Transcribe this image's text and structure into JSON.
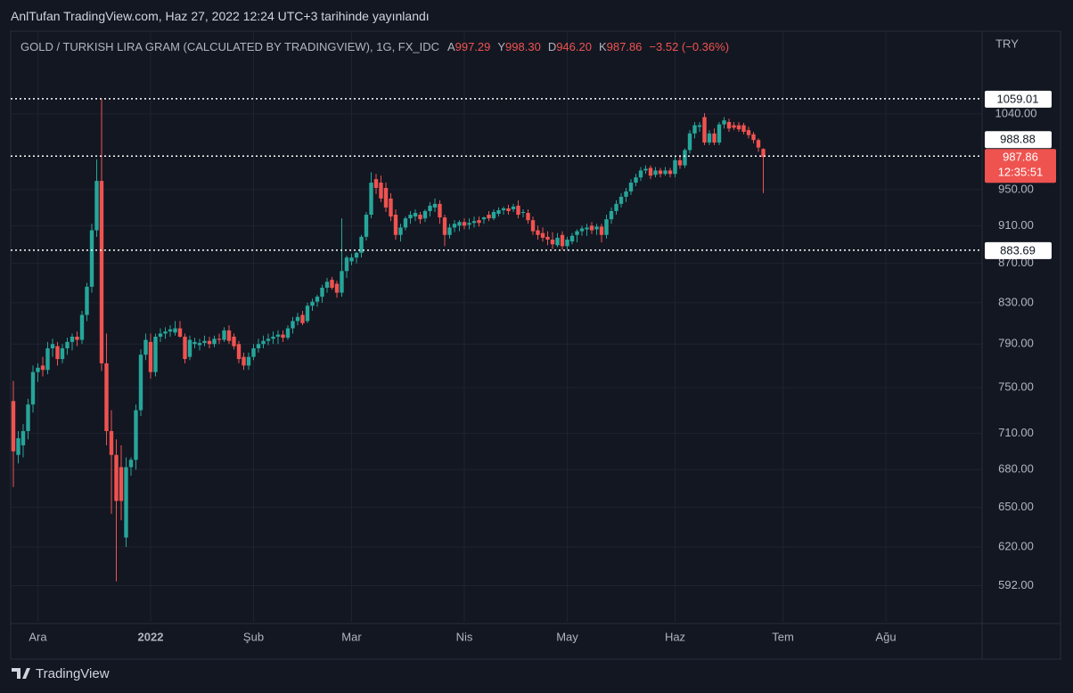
{
  "header": {
    "title": "AnlTufan TradingView.com, Haz 27, 2022 12:24 UTC+3 tarihinde yayınlandı"
  },
  "footer": {
    "logo": "TradingView"
  },
  "chart_data": {
    "type": "candlestick",
    "title": "GOLD / TURKISH LIRA GRAM (CALCULATED BY TRADINGVIEW), 1G, FX_IDC",
    "legend": [
      {
        "key": "A",
        "value": "997.29"
      },
      {
        "key": "Y",
        "value": "998.30"
      },
      {
        "key": "D",
        "value": "946.20"
      },
      {
        "key": "K",
        "value": "987.86"
      }
    ],
    "change": "−3.52 (−0.36%)",
    "currency": "TRY",
    "countdown": "12:35:51",
    "up_color": "#26a69a",
    "down_color": "#ef5350",
    "log_scale": true,
    "grid": true,
    "ylim": [
      567,
      1148
    ],
    "yticks": [
      {
        "value": 592,
        "label": "592.00"
      },
      {
        "value": 620,
        "label": "620.00"
      },
      {
        "value": 650,
        "label": "650.00"
      },
      {
        "value": 680,
        "label": "680.00"
      },
      {
        "value": 710,
        "label": "710.00"
      },
      {
        "value": 750,
        "label": "750.00"
      },
      {
        "value": 790,
        "label": "790.00"
      },
      {
        "value": 830,
        "label": "830.00"
      },
      {
        "value": 870,
        "label": "870.00"
      },
      {
        "value": 910,
        "label": "910.00"
      },
      {
        "value": 950,
        "label": "950.00"
      },
      {
        "value": 1040,
        "label": "1040.00"
      }
    ],
    "hlines": [
      1059.01,
      988.88,
      883.69
    ],
    "categories": [
      null,
      null,
      null,
      null,
      null,
      "Ara",
      null,
      null,
      null,
      null,
      null,
      null,
      null,
      null,
      null,
      null,
      null,
      null,
      null,
      null,
      null,
      null,
      null,
      null,
      null,
      null,
      null,
      null,
      "2022",
      null,
      null,
      null,
      null,
      null,
      null,
      null,
      null,
      null,
      null,
      null,
      null,
      null,
      null,
      null,
      null,
      null,
      null,
      null,
      null,
      "Şub",
      null,
      null,
      null,
      null,
      null,
      null,
      null,
      null,
      null,
      null,
      null,
      null,
      null,
      null,
      null,
      null,
      null,
      null,
      null,
      "Mar",
      null,
      null,
      null,
      null,
      null,
      null,
      null,
      null,
      null,
      null,
      null,
      null,
      null,
      null,
      null,
      null,
      null,
      null,
      null,
      null,
      null,
      null,
      "Nis",
      null,
      null,
      null,
      null,
      null,
      null,
      null,
      null,
      null,
      null,
      null,
      null,
      null,
      null,
      null,
      null,
      null,
      null,
      null,
      null,
      "May",
      null,
      null,
      null,
      null,
      null,
      null,
      null,
      null,
      null,
      null,
      null,
      null,
      null,
      null,
      null,
      null,
      null,
      null,
      null,
      null,
      null,
      "Haz",
      null,
      null,
      null,
      null,
      null,
      null,
      null,
      null,
      null,
      null,
      null,
      null,
      null,
      null,
      null,
      null,
      null,
      null,
      null,
      null,
      null,
      "Tem",
      null,
      null,
      null,
      null,
      null,
      null,
      null,
      null,
      null,
      null,
      null,
      null,
      null,
      null,
      null,
      null,
      null,
      null,
      null,
      null,
      "Ağu"
    ],
    "open": [
      738,
      692,
      700,
      712,
      735,
      764,
      770,
      766,
      786,
      788,
      776,
      786,
      792,
      797,
      794,
      818,
      846,
      905,
      960,
      772,
      712,
      692,
      682,
      627,
      682,
      688,
      730,
      780,
      792,
      764,
      797,
      800,
      802,
      801,
      805,
      797,
      778,
      790,
      789,
      791,
      793,
      790,
      795,
      794,
      803,
      797,
      790,
      778,
      770,
      778,
      786,
      790,
      793,
      795,
      797,
      799,
      796,
      805,
      812,
      818,
      812,
      827,
      831,
      836,
      845,
      853,
      849,
      840,
      862,
      872,
      876,
      881,
      898,
      922,
      962,
      958,
      952,
      940,
      922,
      900,
      908,
      918,
      920,
      922,
      918,
      926,
      930,
      934,
      919,
      900,
      908,
      910,
      914,
      911,
      913,
      916,
      917,
      922,
      918,
      923,
      927,
      929,
      928,
      932,
      924,
      924,
      916,
      905,
      902,
      898,
      895,
      889,
      900,
      888,
      893,
      900,
      904,
      906,
      910,
      906,
      909,
      900,
      917,
      926,
      934,
      942,
      948,
      958,
      964,
      972,
      975,
      967,
      972,
      968,
      972,
      968,
      984,
      978,
      996,
      1016,
      1024,
      1036,
      1005,
      1016,
      1005,
      1027,
      1030,
      1026,
      1026,
      1026,
      1020,
      1015,
      1008,
      997.29,
      null,
      null,
      null,
      null,
      null,
      null,
      null,
      null,
      null,
      null,
      null,
      null,
      null,
      null,
      null,
      null,
      null,
      null,
      null,
      null,
      null,
      null,
      null,
      null,
      null
    ],
    "high": [
      756,
      712,
      718,
      740,
      770,
      772,
      778,
      792,
      795,
      792,
      790,
      796,
      800,
      802,
      822,
      850,
      912,
      985,
      1059.01,
      800,
      730,
      705,
      700,
      690,
      690,
      735,
      785,
      800,
      800,
      800,
      805,
      806,
      808,
      812,
      812,
      800,
      798,
      796,
      795,
      798,
      797,
      798,
      800,
      806,
      808,
      800,
      793,
      782,
      782,
      790,
      795,
      798,
      800,
      802,
      803,
      803,
      808,
      816,
      820,
      822,
      830,
      834,
      838,
      848,
      855,
      856,
      852,
      918,
      878,
      880,
      882,
      900,
      925,
      970,
      968,
      966,
      958,
      946,
      928,
      912,
      920,
      926,
      928,
      925,
      928,
      936,
      940,
      938,
      922,
      912,
      916,
      916,
      918,
      918,
      920,
      920,
      920,
      926,
      928,
      930,
      931,
      933,
      934,
      938,
      928,
      928,
      920,
      910,
      908,
      904,
      903,
      902,
      904,
      898,
      902,
      906,
      910,
      912,
      914,
      912,
      912,
      922,
      930,
      938,
      946,
      952,
      962,
      968,
      976,
      978,
      978,
      976,
      975,
      976,
      975,
      988,
      990,
      998,
      1020,
      1030,
      1030,
      1041,
      1020,
      1022,
      1030,
      1036,
      1034,
      1030,
      1030,
      1029,
      1024,
      1018,
      1010,
      998.3,
      null,
      null,
      null,
      null,
      null,
      null,
      null,
      null,
      null,
      null,
      null,
      null,
      null,
      null,
      null,
      null,
      null,
      null,
      null,
      null,
      null,
      null,
      null,
      null,
      null
    ],
    "low": [
      666,
      685,
      690,
      705,
      728,
      755,
      760,
      762,
      778,
      770,
      772,
      780,
      784,
      788,
      790,
      812,
      840,
      898,
      765,
      700,
      645,
      595,
      640,
      620,
      675,
      680,
      725,
      775,
      758,
      760,
      792,
      795,
      797,
      798,
      796,
      772,
      775,
      786,
      784,
      788,
      786,
      787,
      790,
      792,
      790,
      785,
      772,
      766,
      766,
      775,
      782,
      786,
      789,
      790,
      790,
      792,
      794,
      800,
      808,
      808,
      810,
      822,
      826,
      830,
      840,
      843,
      835,
      836,
      855,
      868,
      870,
      876,
      894,
      918,
      945,
      936,
      925,
      915,
      895,
      893,
      905,
      912,
      915,
      912,
      914,
      920,
      925,
      912,
      888,
      896,
      903,
      904,
      906,
      906,
      908,
      909,
      912,
      915,
      916,
      920,
      922,
      922,
      925,
      918,
      919,
      912,
      900,
      895,
      893,
      889,
      885,
      887,
      884,
      884,
      890,
      892,
      899,
      899,
      901,
      900,
      892,
      896,
      912,
      922,
      930,
      936,
      944,
      954,
      960,
      968,
      962,
      964,
      964,
      966,
      964,
      964,
      974,
      975,
      992,
      1010,
      1018,
      1002,
      1002,
      1002,
      1002,
      1022,
      1018,
      1020,
      1018,
      1015,
      1010,
      1004,
      994,
      946.2,
      null,
      null,
      null,
      null,
      null,
      null,
      null,
      null,
      null,
      null,
      null,
      null,
      null,
      null,
      null,
      null,
      null,
      null,
      null,
      null,
      null,
      null,
      null,
      null,
      null
    ],
    "close": [
      695,
      706,
      712,
      735,
      764,
      768,
      766,
      786,
      790,
      776,
      786,
      792,
      797,
      794,
      818,
      846,
      905,
      960,
      772,
      712,
      692,
      655,
      655,
      682,
      688,
      730,
      780,
      794,
      764,
      797,
      800,
      802,
      804,
      805,
      797,
      776,
      794,
      792,
      791,
      793,
      790,
      795,
      794,
      803,
      793,
      788,
      776,
      770,
      778,
      786,
      790,
      793,
      795,
      797,
      799,
      796,
      805,
      812,
      816,
      810,
      827,
      831,
      836,
      845,
      851,
      845,
      840,
      862,
      876,
      876,
      881,
      898,
      922,
      958,
      952,
      940,
      930,
      920,
      900,
      908,
      918,
      922,
      924,
      917,
      926,
      932,
      934,
      919,
      900,
      908,
      912,
      914,
      910,
      913,
      915,
      913,
      919,
      918,
      925,
      927,
      929,
      926,
      931,
      922,
      925,
      916,
      904,
      900,
      897,
      895,
      890,
      897,
      888,
      895,
      899,
      904,
      907,
      908,
      905,
      909,
      900,
      917,
      926,
      934,
      942,
      948,
      958,
      964,
      972,
      974,
      966,
      972,
      968,
      972,
      968,
      984,
      978,
      996,
      1016,
      1026,
      1026,
      1005,
      1016,
      1005,
      1027,
      1032,
      1022,
      1023,
      1021,
      1018,
      1014,
      1008,
      999,
      987.86,
      null,
      null,
      null,
      null,
      null,
      null,
      null,
      null,
      null,
      null,
      null,
      null,
      null,
      null,
      null,
      null,
      null,
      null,
      null,
      null,
      null,
      null,
      null,
      null,
      null
    ]
  }
}
